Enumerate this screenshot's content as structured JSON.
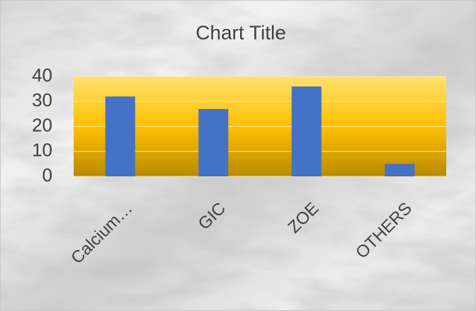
{
  "chart_data": {
    "type": "bar",
    "title": "Chart Title",
    "categories": [
      "Calcium…",
      "GIC",
      "ZOE",
      "OTHERS"
    ],
    "values": [
      32,
      27,
      36,
      5
    ],
    "color": "#4472c4",
    "ylim": [
      0,
      40
    ],
    "yticks": [
      0,
      10,
      20,
      30,
      40
    ],
    "grid": true
  }
}
